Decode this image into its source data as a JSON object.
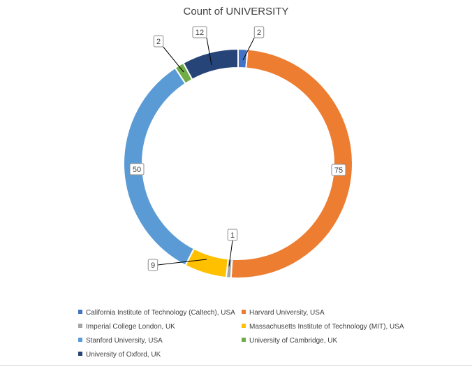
{
  "chart_data": {
    "type": "pie",
    "subtype": "doughnut",
    "title": "Count of UNIVERSITY",
    "categories": [
      "California Institute of Technology (Caltech), USA",
      "Harvard University, USA",
      "Imperial College London, UK",
      "Massachusetts Institute of Technology (MIT), USA",
      "Stanford University, USA",
      "University of Cambridge, UK",
      "University of Oxford, UK"
    ],
    "values": [
      2,
      75,
      1,
      9,
      50,
      2,
      12
    ],
    "colors": [
      "#4472C4",
      "#ED7D31",
      "#A5A5A5",
      "#FFC000",
      "#5B9BD5",
      "#70AD47",
      "#264478"
    ],
    "legend_position": "bottom",
    "data_labels": true
  }
}
